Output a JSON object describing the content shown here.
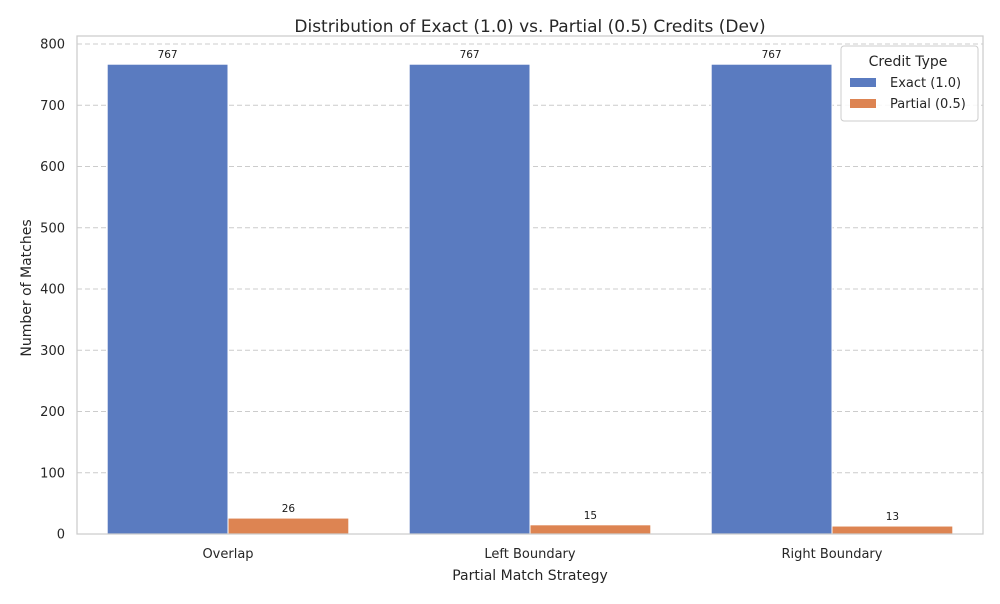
{
  "chart_data": {
    "type": "bar",
    "title": "Distribution of Exact (1.0) vs. Partial (0.5) Credits (Dev)",
    "xlabel": "Partial Match Strategy",
    "ylabel": "Number of Matches",
    "categories": [
      "Overlap",
      "Left Boundary",
      "Right Boundary"
    ],
    "series": [
      {
        "name": "Exact (1.0)",
        "values": [
          767,
          767,
          767
        ],
        "color": "#5a7bc0"
      },
      {
        "name": "Partial (0.5)",
        "values": [
          26,
          15,
          13
        ],
        "color": "#dd8452"
      }
    ],
    "ylim": [
      0,
      800
    ],
    "yticks": [
      0,
      100,
      200,
      300,
      400,
      500,
      600,
      700,
      800
    ],
    "grid": true,
    "legend": {
      "title": "Credit Type",
      "placement": "top-right"
    }
  }
}
